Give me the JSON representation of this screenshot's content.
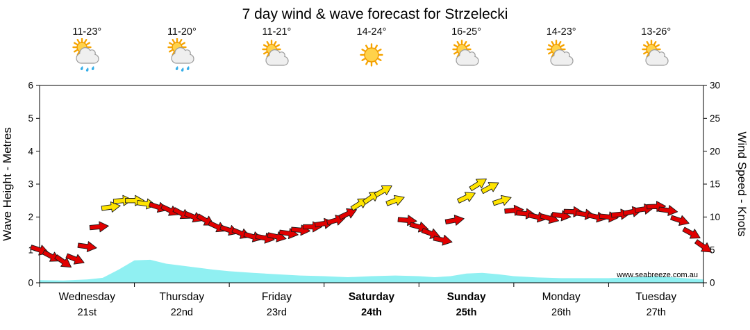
{
  "chart_data": {
    "type": "line",
    "title": "7 day wind & wave forecast for Strzelecki",
    "watermark": "www.seabreeze.com.au",
    "left_axis": {
      "label": "Wave Height - Metres",
      "min": 0,
      "max": 6,
      "ticks": [
        0,
        1,
        2,
        3,
        4,
        5,
        6
      ]
    },
    "right_axis": {
      "label": "Wind Speed - Knots",
      "min": 0,
      "max": 30,
      "ticks": [
        0,
        5,
        10,
        15,
        20,
        25,
        30
      ]
    },
    "days": [
      {
        "name": "Wednesday",
        "date": "21st",
        "temp": "11-23°",
        "icon": "showers",
        "bold": false
      },
      {
        "name": "Thursday",
        "date": "22nd",
        "temp": "11-20°",
        "icon": "showers",
        "bold": false
      },
      {
        "name": "Friday",
        "date": "23rd",
        "temp": "11-21°",
        "icon": "partly-cloudy",
        "bold": false
      },
      {
        "name": "Saturday",
        "date": "24th",
        "temp": "14-24°",
        "icon": "sunny",
        "bold": true
      },
      {
        "name": "Sunday",
        "date": "25th",
        "temp": "16-25°",
        "icon": "partly-cloudy",
        "bold": true
      },
      {
        "name": "Monday",
        "date": "26th",
        "temp": "14-23°",
        "icon": "partly-cloudy",
        "bold": false
      },
      {
        "name": "Tuesday",
        "date": "27th",
        "temp": "13-26°",
        "icon": "partly-cloudy",
        "bold": false
      }
    ],
    "hours_span": 168,
    "wind": {
      "unit": "knots",
      "point_format": [
        "hour",
        "knots",
        "direction_deg",
        "color_code"
      ],
      "points": [
        [
          0,
          5.0,
          18,
          "r"
        ],
        [
          3,
          4.0,
          28,
          "r"
        ],
        [
          6,
          3.2,
          35,
          "r"
        ],
        [
          9,
          3.6,
          22,
          "r"
        ],
        [
          12,
          5.5,
          8,
          "r"
        ],
        [
          15,
          8.5,
          -5,
          "r"
        ],
        [
          18,
          11.5,
          -8,
          "y"
        ],
        [
          21,
          12.5,
          -5,
          "y"
        ],
        [
          24,
          12.5,
          0,
          "y"
        ],
        [
          27,
          12.0,
          8,
          "y"
        ],
        [
          30,
          11.5,
          18,
          "r"
        ],
        [
          33,
          11.0,
          25,
          "r"
        ],
        [
          36,
          10.5,
          28,
          "r"
        ],
        [
          39,
          10.0,
          22,
          "r"
        ],
        [
          42,
          9.5,
          30,
          "r"
        ],
        [
          45,
          8.5,
          25,
          "r"
        ],
        [
          48,
          8.0,
          18,
          "r"
        ],
        [
          51,
          7.5,
          22,
          "r"
        ],
        [
          54,
          7.0,
          15,
          "r"
        ],
        [
          57,
          6.8,
          10,
          "r"
        ],
        [
          60,
          7.0,
          12,
          "r"
        ],
        [
          63,
          7.5,
          8,
          "r"
        ],
        [
          66,
          8.0,
          5,
          "r"
        ],
        [
          69,
          8.5,
          0,
          "r"
        ],
        [
          72,
          9.0,
          -8,
          "r"
        ],
        [
          75,
          9.5,
          -15,
          "r"
        ],
        [
          78,
          10.5,
          -25,
          "r"
        ],
        [
          81,
          12.0,
          -32,
          "y"
        ],
        [
          84,
          13.0,
          -35,
          "y"
        ],
        [
          87,
          14.0,
          -30,
          "y"
        ],
        [
          90,
          12.5,
          -20,
          "y"
        ],
        [
          93,
          9.5,
          5,
          "r"
        ],
        [
          96,
          8.5,
          15,
          "r"
        ],
        [
          99,
          7.5,
          20,
          "r"
        ],
        [
          102,
          6.5,
          12,
          "r"
        ],
        [
          105,
          9.5,
          -10,
          "r"
        ],
        [
          108,
          13.0,
          -25,
          "y"
        ],
        [
          111,
          15.0,
          -32,
          "y"
        ],
        [
          114,
          14.5,
          -28,
          "y"
        ],
        [
          117,
          12.5,
          -18,
          "y"
        ],
        [
          120,
          11.0,
          -5,
          "r"
        ],
        [
          123,
          10.5,
          5,
          "r"
        ],
        [
          126,
          10.0,
          12,
          "r"
        ],
        [
          129,
          9.8,
          15,
          "r"
        ],
        [
          132,
          10.2,
          8,
          "r"
        ],
        [
          135,
          10.8,
          2,
          "r"
        ],
        [
          138,
          10.4,
          8,
          "r"
        ],
        [
          141,
          10.0,
          12,
          "r"
        ],
        [
          144,
          10.0,
          5,
          "r"
        ],
        [
          147,
          10.4,
          -5,
          "r"
        ],
        [
          150,
          10.8,
          -10,
          "r"
        ],
        [
          153,
          11.2,
          -8,
          "r"
        ],
        [
          156,
          11.6,
          -2,
          "r"
        ],
        [
          159,
          11.0,
          8,
          "r"
        ],
        [
          162,
          9.5,
          18,
          "r"
        ],
        [
          165,
          7.5,
          28,
          "r"
        ],
        [
          168,
          5.5,
          35,
          "r"
        ]
      ]
    },
    "wave": {
      "unit": "metres",
      "point_format": [
        "hour",
        "metres"
      ],
      "points": [
        [
          0,
          0.08
        ],
        [
          6,
          0.07
        ],
        [
          12,
          0.1
        ],
        [
          16,
          0.15
        ],
        [
          20,
          0.4
        ],
        [
          24,
          0.68
        ],
        [
          28,
          0.7
        ],
        [
          32,
          0.58
        ],
        [
          36,
          0.52
        ],
        [
          40,
          0.46
        ],
        [
          44,
          0.4
        ],
        [
          48,
          0.35
        ],
        [
          54,
          0.3
        ],
        [
          60,
          0.26
        ],
        [
          66,
          0.22
        ],
        [
          72,
          0.2
        ],
        [
          78,
          0.17
        ],
        [
          84,
          0.2
        ],
        [
          90,
          0.22
        ],
        [
          96,
          0.2
        ],
        [
          100,
          0.17
        ],
        [
          104,
          0.2
        ],
        [
          108,
          0.28
        ],
        [
          112,
          0.3
        ],
        [
          116,
          0.26
        ],
        [
          120,
          0.2
        ],
        [
          126,
          0.16
        ],
        [
          132,
          0.14
        ],
        [
          138,
          0.14
        ],
        [
          144,
          0.14
        ],
        [
          150,
          0.17
        ],
        [
          156,
          0.2
        ],
        [
          162,
          0.15
        ],
        [
          168,
          0.1
        ]
      ]
    },
    "colors": {
      "wind_light": "#E10000",
      "wind_strong": "#FFE400",
      "wave_fill": "#90F0F2",
      "outline": "#1a1a1a",
      "date_gray": "#909090",
      "watermark_gray": "#C4C4C4"
    },
    "legend_position": "none",
    "grid": false
  }
}
